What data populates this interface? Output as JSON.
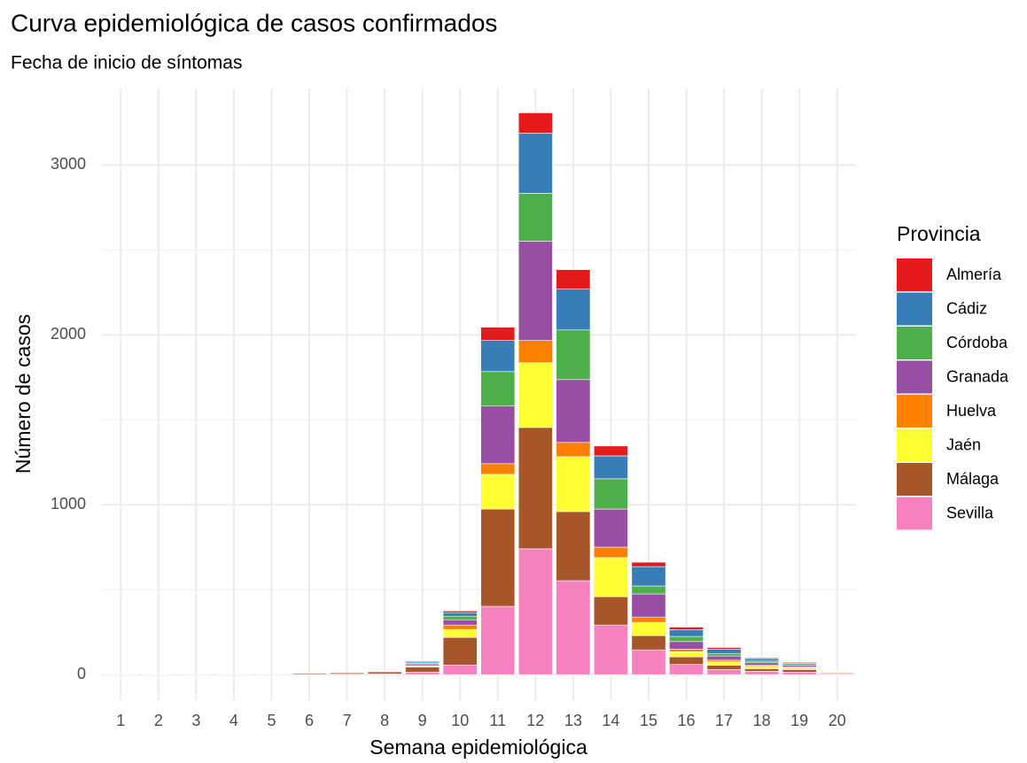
{
  "chart_data": {
    "type": "stacked_bar",
    "title": "Curva epidemiológica de casos confirmados",
    "subtitle": "Fecha de inicio de síntomas",
    "x_label": "Semana epidemiológica",
    "y_label": "Número de casos",
    "legend_title": "Provincia",
    "legend": "right",
    "grid": true,
    "categories": [
      "1",
      "2",
      "3",
      "4",
      "5",
      "6",
      "7",
      "8",
      "9",
      "10",
      "11",
      "12",
      "13",
      "14",
      "15",
      "16",
      "17",
      "18",
      "19",
      "20"
    ],
    "ylim": [
      -150,
      3450
    ],
    "yticks": [
      0,
      1000,
      2000,
      3000
    ],
    "minor_yticks": [
      500,
      1500,
      2500
    ],
    "series": [
      {
        "name": "Almería",
        "color": "#e41a1c",
        "values": [
          0,
          0,
          0,
          0,
          0,
          0,
          0,
          1,
          5,
          10,
          78,
          120,
          115,
          58,
          26,
          15,
          10,
          5,
          5,
          1
        ]
      },
      {
        "name": "Cádiz",
        "color": "#377eb8",
        "values": [
          1,
          3,
          0,
          1,
          0,
          1,
          1,
          1,
          7,
          21,
          183,
          354,
          240,
          135,
          114,
          40,
          25,
          15,
          5,
          1
        ]
      },
      {
        "name": "Córdoba",
        "color": "#4daf4a",
        "values": [
          0,
          0,
          0,
          0,
          0,
          0,
          0,
          1,
          5,
          21,
          203,
          282,
          292,
          178,
          47,
          30,
          15,
          10,
          10,
          2
        ]
      },
      {
        "name": "Granada",
        "color": "#984ea3",
        "values": [
          0,
          0,
          1,
          0,
          0,
          1,
          1,
          2,
          10,
          31,
          339,
          584,
          370,
          224,
          136,
          45,
          25,
          15,
          10,
          3
        ]
      },
      {
        "name": "Huelva",
        "color": "#ff7f00",
        "values": [
          0,
          0,
          0,
          0,
          0,
          0,
          1,
          1,
          3,
          26,
          63,
          131,
          84,
          62,
          31,
          15,
          10,
          5,
          5,
          1
        ]
      },
      {
        "name": "Jaén",
        "color": "#ffff33",
        "values": [
          0,
          0,
          0,
          0,
          0,
          1,
          1,
          2,
          5,
          47,
          204,
          381,
          323,
          230,
          78,
          30,
          20,
          15,
          10,
          2
        ]
      },
      {
        "name": "Málaga",
        "color": "#a65628",
        "values": [
          1,
          0,
          1,
          1,
          1,
          7,
          8,
          12,
          30,
          162,
          573,
          714,
          407,
          167,
          84,
          45,
          25,
          15,
          15,
          5
        ]
      },
      {
        "name": "Sevilla",
        "color": "#f781bf",
        "values": [
          1,
          1,
          0,
          1,
          1,
          2,
          3,
          5,
          15,
          57,
          402,
          741,
          553,
          292,
          146,
          60,
          30,
          20,
          15,
          5
        ]
      }
    ]
  }
}
